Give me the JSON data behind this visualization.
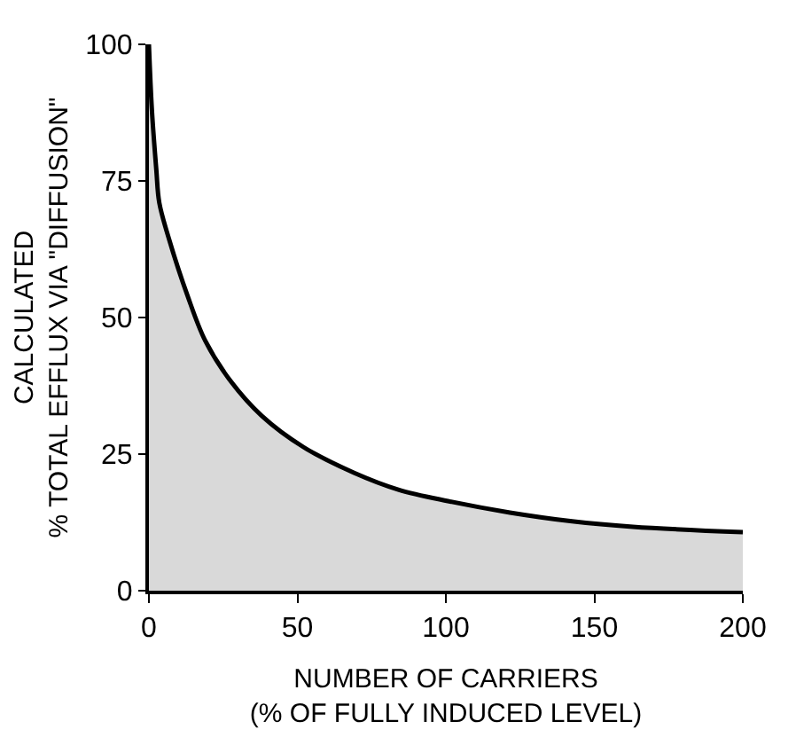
{
  "chart_data": {
    "type": "area",
    "xlabel": "NUMBER OF CARRIERS\n(% OF FULLY INDUCED LEVEL)",
    "ylabel": "CALCULATED\n% TOTAL EFFLUX VIA \"DIFFUSION\"",
    "x": [
      0,
      1,
      2.5,
      3.5,
      6.7,
      13,
      19,
      27.6,
      38,
      52,
      69,
      84,
      100.7,
      121.6,
      142.5,
      163,
      200
    ],
    "series": [
      {
        "color": "#000000",
        "values": [
          100,
          88,
          77,
          71,
          64.5,
          54,
          45.7,
          38.3,
          32,
          26.3,
          21.6,
          18.5,
          16.4,
          14.3,
          12.7,
          11.7,
          10.7
        ]
      }
    ],
    "xlim": [
      0,
      200
    ],
    "xticks": [
      0,
      50,
      100,
      150,
      200
    ],
    "ylim": [
      0,
      100
    ],
    "yticks": [
      0,
      25,
      50,
      75,
      100
    ],
    "marker": "none",
    "line_style": "solid"
  }
}
